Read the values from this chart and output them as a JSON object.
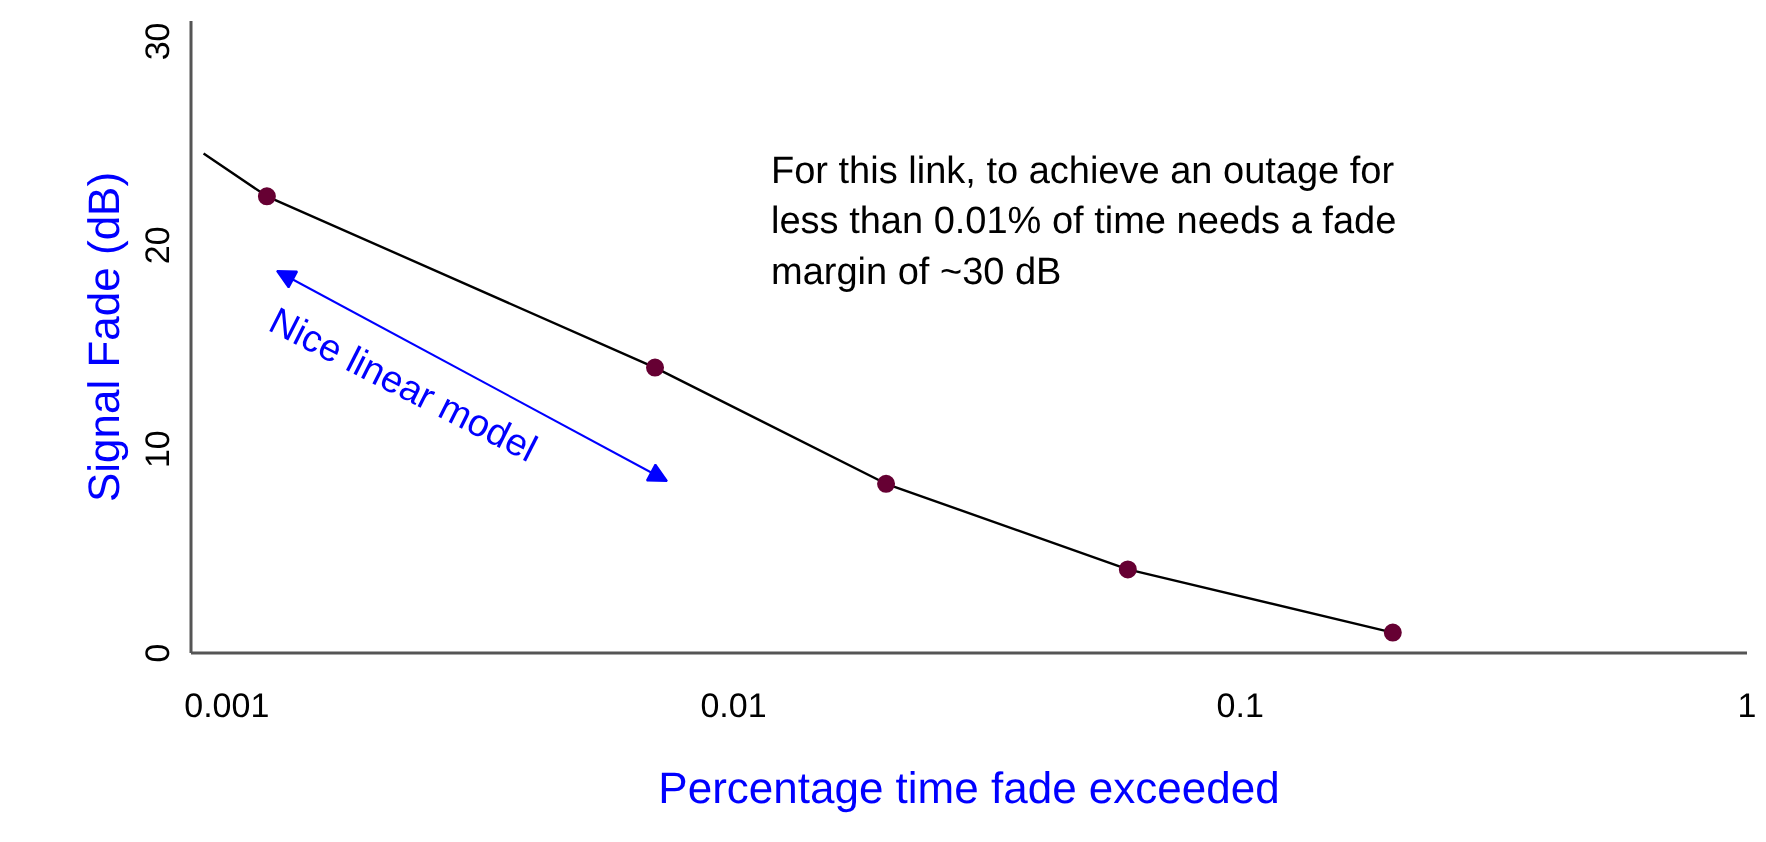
{
  "chart_data": {
    "type": "scatter",
    "xlabel": "Percentage time fade exceeded",
    "ylabel": "Signal Fade (dB)",
    "x": [
      0.0012,
      0.007,
      0.02,
      0.06,
      0.2
    ],
    "series": [
      {
        "color": "#660033",
        "marker": "circle",
        "values": [
          22.4,
          14.0,
          8.3,
          4.1,
          1.0
        ]
      },
      {
        "type": "line",
        "marker": "none",
        "color": "#000000",
        "x": [
          0.0009,
          0.0012,
          0.007,
          0.02,
          0.06,
          0.2
        ],
        "values": [
          24.5,
          22.4,
          14.0,
          8.3,
          4.1,
          1.0
        ]
      }
    ],
    "log": "x",
    "xlim": [
      0.00085,
      1
    ],
    "ylim": [
      0,
      31
    ],
    "xticks": [
      0.001,
      0.01,
      0.1,
      1
    ],
    "yticks": [
      0,
      10,
      20,
      30
    ],
    "grid": false,
    "line_style": "solid",
    "annotations": [
      "For this link, to achieve an outage for\nless than 0.01% of time needs a fade\nmargin of ~30 dB",
      "Nice linear model"
    ]
  }
}
